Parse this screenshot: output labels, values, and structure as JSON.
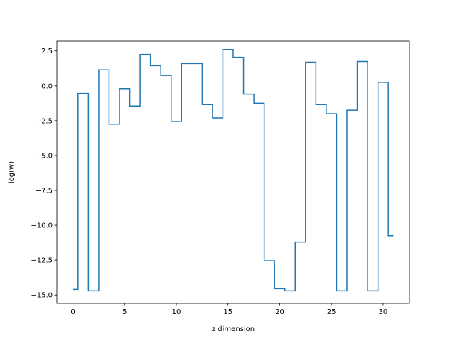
{
  "chart_data": {
    "type": "line",
    "drawstyle": "steps-mid",
    "title": "",
    "xlabel": "z dimension",
    "ylabel": "log(w)",
    "xlim": [
      -1.55,
      32.55
    ],
    "ylim": [
      -15.6,
      3.2
    ],
    "xticks": [
      0,
      5,
      10,
      15,
      20,
      25,
      30
    ],
    "xtick_labels": [
      "0",
      "5",
      "10",
      "15",
      "20",
      "25",
      "30"
    ],
    "yticks": [
      2.5,
      0.0,
      -2.5,
      -5.0,
      -7.5,
      -10.0,
      -12.5,
      -15.0
    ],
    "ytick_labels": [
      "2.5",
      "0.0",
      "−2.5",
      "−5.0",
      "−7.5",
      "−10.0",
      "−12.5",
      "−15.0"
    ],
    "grid": false,
    "legend": "none",
    "line_color": "#1f77b4",
    "x": [
      0,
      1,
      2,
      3,
      4,
      5,
      6,
      7,
      8,
      9,
      10,
      11,
      12,
      13,
      14,
      15,
      16,
      17,
      18,
      19,
      20,
      21,
      22,
      23,
      24,
      25,
      26,
      27,
      28,
      29,
      30,
      31
    ],
    "series": [
      {
        "values": [
          -14.6,
          -0.55,
          -14.7,
          1.15,
          -2.75,
          -0.2,
          -1.45,
          2.25,
          1.45,
          0.75,
          -2.55,
          1.6,
          1.6,
          -1.35,
          -2.3,
          2.6,
          2.05,
          -0.6,
          -1.25,
          -12.55,
          -14.55,
          -14.7,
          -11.2,
          1.7,
          -1.35,
          -2.0,
          -14.7,
          -1.75,
          1.75,
          -14.7,
          0.25,
          -10.75
        ]
      }
    ]
  }
}
